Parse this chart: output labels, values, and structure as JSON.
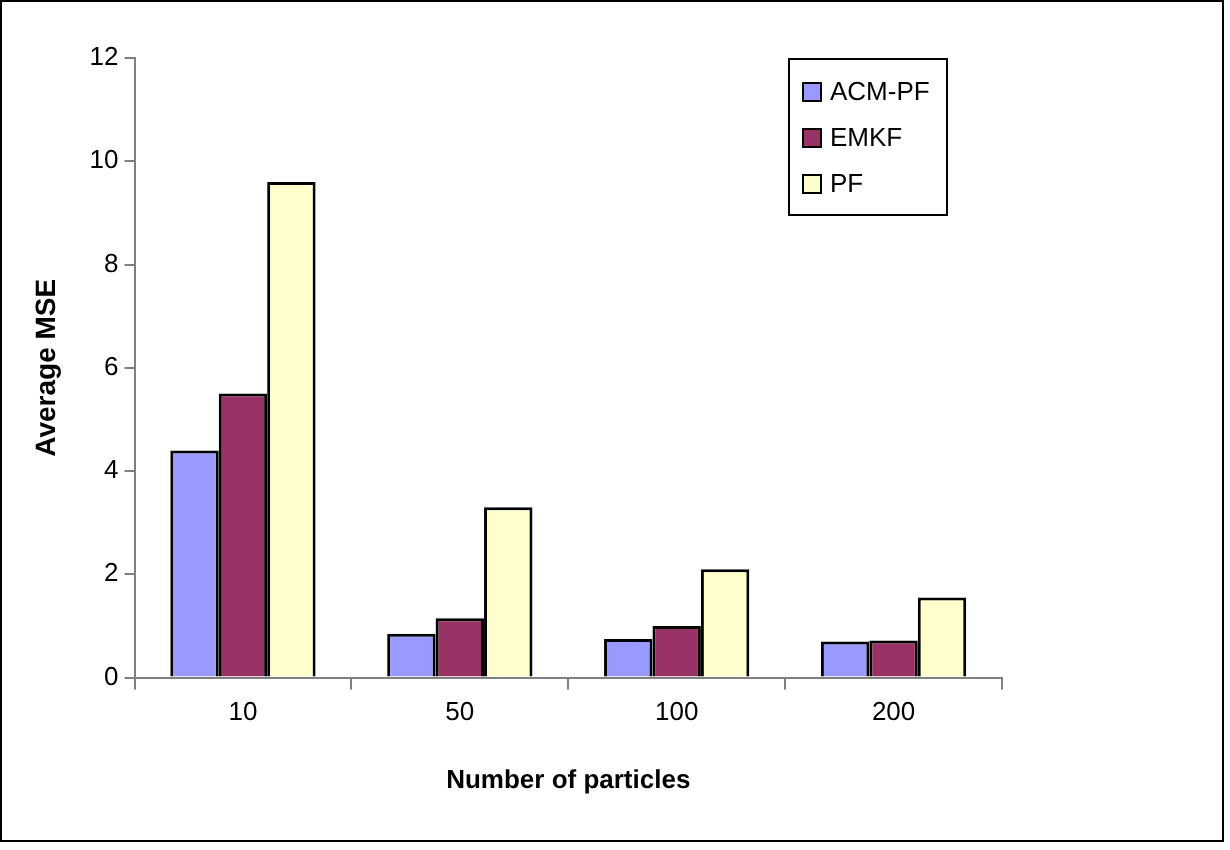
{
  "chart_data": {
    "type": "bar",
    "xlabel": "Number of particles",
    "ylabel": "Average MSE",
    "categories": [
      "10",
      "50",
      "100",
      "200"
    ],
    "series": [
      {
        "name": "ACM-PF",
        "color": "#9999ff",
        "values": [
          4.4,
          0.85,
          0.75,
          0.7
        ]
      },
      {
        "name": "EMKF",
        "color": "#993366",
        "values": [
          5.5,
          1.15,
          1.0,
          0.72
        ]
      },
      {
        "name": "PF",
        "color": "#ffffcc",
        "values": [
          9.6,
          3.3,
          2.1,
          1.55
        ]
      }
    ],
    "ylim": [
      0,
      12
    ],
    "yticks": [
      0,
      2,
      4,
      6,
      8,
      10,
      12
    ],
    "grid": false,
    "legend": "top right"
  }
}
